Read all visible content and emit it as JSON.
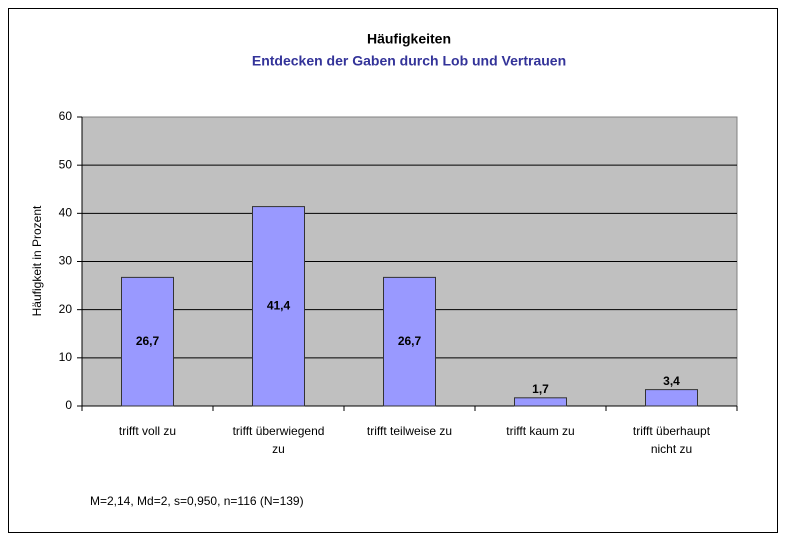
{
  "chart_data": {
    "type": "bar",
    "title": "Häufigkeiten",
    "subtitle": "Entdecken der Gaben durch Lob und Vertrauen",
    "y_label": "Häufigkeit in Prozent",
    "annotation": "M=2,14, Md=2, s=0,950, n=116 (N=139)",
    "categories": [
      "trifft voll zu",
      "trifft überwiegend zu",
      "trifft teilweise zu",
      "trifft kaum zu",
      "trifft überhaupt nicht zu"
    ],
    "values": [
      26.7,
      41.4,
      26.7,
      1.7,
      3.4
    ],
    "value_labels": [
      "26,7",
      "41,4",
      "26,7",
      "1,7",
      "3,4"
    ],
    "color": "#9999ff",
    "ylim": [
      0,
      60
    ],
    "yticks": [
      0,
      10,
      20,
      30,
      40,
      50,
      60
    ],
    "grid": true
  }
}
